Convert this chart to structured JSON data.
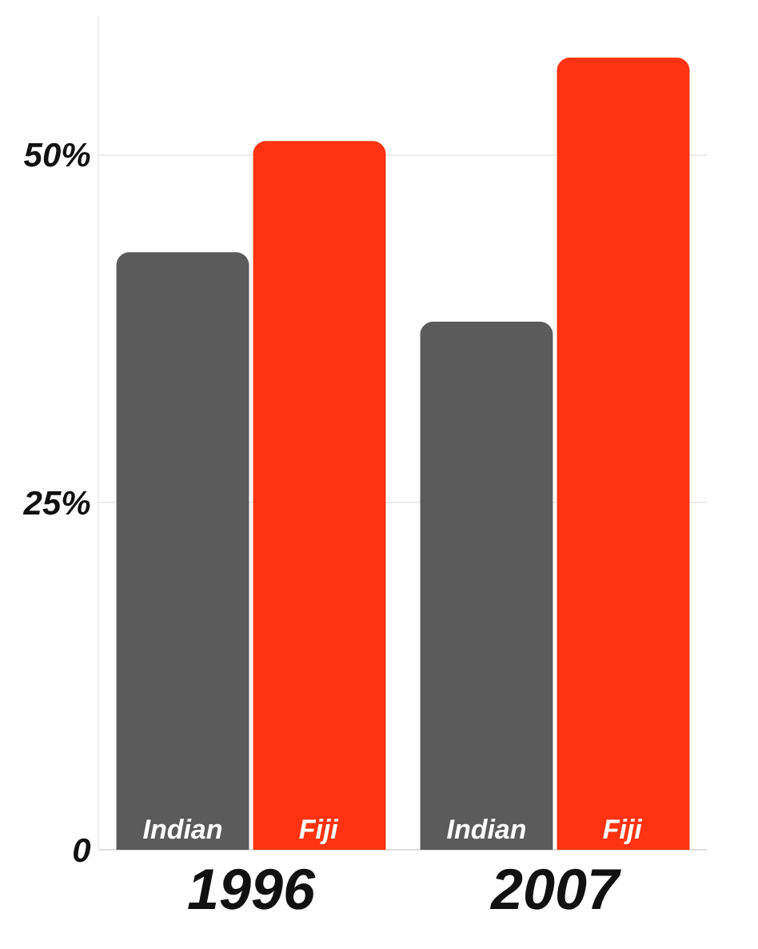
{
  "chart_data": {
    "type": "bar",
    "categories": [
      "1996",
      "2007"
    ],
    "series": [
      {
        "name": "Indian",
        "color": "#5b5b5b",
        "values": [
          43,
          38
        ]
      },
      {
        "name": "Fiji",
        "color": "#ff3311",
        "values": [
          51,
          57
        ]
      }
    ],
    "ylim": [
      0,
      60
    ],
    "yticks": [
      {
        "value": 0,
        "label": "0"
      },
      {
        "value": 25,
        "label": "25%"
      },
      {
        "value": 50,
        "label": "50%"
      }
    ],
    "grid": "y",
    "legend": false
  }
}
